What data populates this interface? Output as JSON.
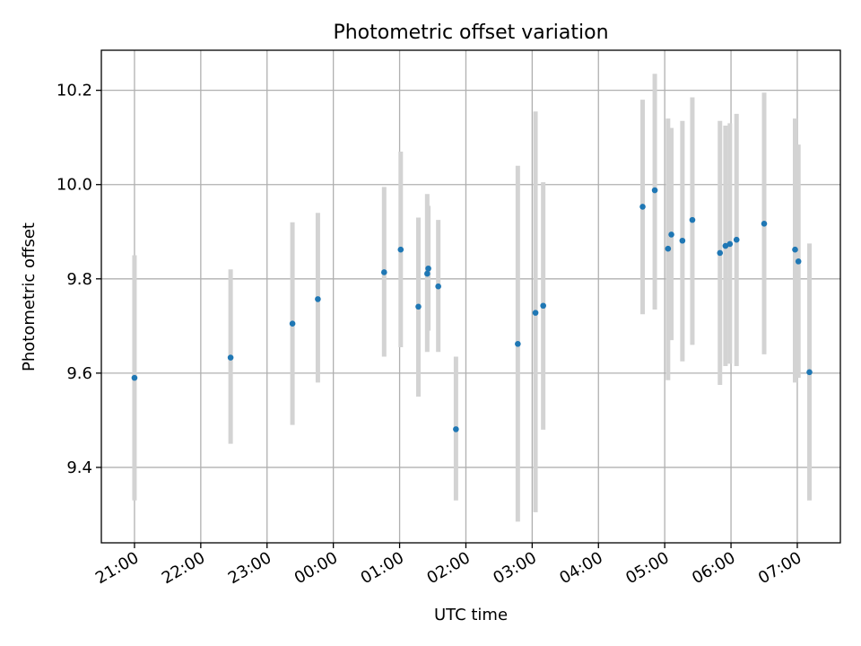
{
  "chart_data": {
    "type": "scatter",
    "title": "Photometric offset variation",
    "xlabel": "UTC time",
    "ylabel": "Photometric offset",
    "x_axis": "time",
    "x_tick_labels": [
      "21:00",
      "22:00",
      "23:00",
      "00:00",
      "01:00",
      "02:00",
      "03:00",
      "04:00",
      "05:00",
      "06:00",
      "07:00"
    ],
    "x_tick_hours": [
      21,
      22,
      23,
      24,
      25,
      26,
      27,
      28,
      29,
      30,
      31
    ],
    "xlim_hours": [
      20.5,
      31.65
    ],
    "y_ticks": [
      9.4,
      9.6,
      9.8,
      10.0,
      10.2
    ],
    "y_tick_labels": [
      "9.4",
      "9.6",
      "9.8",
      "10.0",
      "10.2"
    ],
    "ylim": [
      9.24,
      10.285
    ],
    "grid": true,
    "marker_color": "#1f77b4",
    "errorbar_color": "#d3d3d3",
    "points": [
      {
        "time": "21:00",
        "y": 9.59,
        "lo": 9.33,
        "hi": 9.85
      },
      {
        "time": "22:27",
        "y": 9.633,
        "lo": 9.45,
        "hi": 9.82
      },
      {
        "time": "23:23",
        "y": 9.705,
        "lo": 9.49,
        "hi": 9.92
      },
      {
        "time": "23:46",
        "y": 9.757,
        "lo": 9.58,
        "hi": 9.94
      },
      {
        "time": "00:46",
        "y": 9.814,
        "lo": 9.635,
        "hi": 9.995
      },
      {
        "time": "01:01",
        "y": 9.862,
        "lo": 9.655,
        "hi": 10.07
      },
      {
        "time": "01:17",
        "y": 9.741,
        "lo": 9.55,
        "hi": 9.93
      },
      {
        "time": "01:25",
        "y": 9.811,
        "lo": 9.645,
        "hi": 9.98
      },
      {
        "time": "01:26",
        "y": 9.822,
        "lo": 9.69,
        "hi": 9.955
      },
      {
        "time": "01:35",
        "y": 9.784,
        "lo": 9.645,
        "hi": 9.925
      },
      {
        "time": "01:51",
        "y": 9.481,
        "lo": 9.33,
        "hi": 9.635
      },
      {
        "time": "02:47",
        "y": 9.662,
        "lo": 9.285,
        "hi": 10.04
      },
      {
        "time": "03:03",
        "y": 9.728,
        "lo": 9.305,
        "hi": 10.155
      },
      {
        "time": "03:10",
        "y": 9.743,
        "lo": 9.48,
        "hi": 10.005
      },
      {
        "time": "04:40",
        "y": 9.953,
        "lo": 9.725,
        "hi": 10.18
      },
      {
        "time": "04:51",
        "y": 9.988,
        "lo": 9.735,
        "hi": 10.235
      },
      {
        "time": "05:03",
        "y": 9.864,
        "lo": 9.585,
        "hi": 10.14
      },
      {
        "time": "05:06",
        "y": 9.894,
        "lo": 9.67,
        "hi": 10.12
      },
      {
        "time": "05:16",
        "y": 9.881,
        "lo": 9.625,
        "hi": 10.135
      },
      {
        "time": "05:25",
        "y": 9.925,
        "lo": 9.66,
        "hi": 10.185
      },
      {
        "time": "05:50",
        "y": 9.855,
        "lo": 9.575,
        "hi": 10.135
      },
      {
        "time": "05:55",
        "y": 9.87,
        "lo": 9.615,
        "hi": 10.125
      },
      {
        "time": "05:59",
        "y": 9.874,
        "lo": 9.62,
        "hi": 10.13
      },
      {
        "time": "06:05",
        "y": 9.883,
        "lo": 9.615,
        "hi": 10.15
      },
      {
        "time": "06:30",
        "y": 9.917,
        "lo": 9.64,
        "hi": 10.195
      },
      {
        "time": "06:58",
        "y": 9.862,
        "lo": 9.58,
        "hi": 10.14
      },
      {
        "time": "07:01",
        "y": 9.837,
        "lo": 9.59,
        "hi": 10.085
      },
      {
        "time": "07:11",
        "y": 9.602,
        "lo": 9.33,
        "hi": 9.875
      }
    ]
  }
}
